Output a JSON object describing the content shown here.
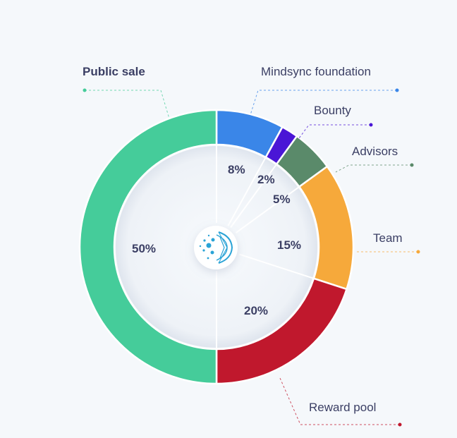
{
  "chart_data": {
    "type": "pie",
    "title": "",
    "center_icon": "brain-network-logo",
    "series": [
      {
        "name": "Mindsync foundation",
        "value": 8,
        "label": "8%",
        "color": "#3a86e8"
      },
      {
        "name": "Bounty",
        "value": 2,
        "label": "2%",
        "color": "#4a16d6"
      },
      {
        "name": "Advisors",
        "value": 5,
        "label": "5%",
        "color": "#5a8a6a"
      },
      {
        "name": "Team",
        "value": 15,
        "label": "15%",
        "color": "#f6a93b"
      },
      {
        "name": "Reward pool",
        "value": 20,
        "label": "20%",
        "color": "#c0182d"
      },
      {
        "name": "Public sale",
        "value": 50,
        "label": "50%",
        "color": "#45cc9a"
      }
    ]
  }
}
